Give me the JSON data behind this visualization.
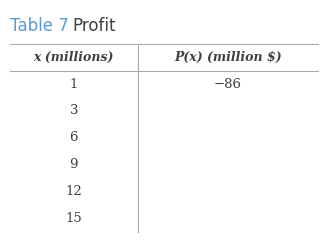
{
  "title_table": "Table 7",
  "title_profit": "Profit",
  "title_table_color": "#5b9bd5",
  "title_profit_color": "#404040",
  "col1_header": "x (millions)",
  "col2_header": "P(x) (million $)",
  "col1_values": [
    "1",
    "3",
    "6",
    "9",
    "12",
    "15"
  ],
  "col2_values": [
    "−86",
    "",
    "",
    "",
    "",
    ""
  ],
  "background_color": "#ffffff",
  "line_color": "#aaaaaa",
  "text_color": "#404040",
  "header_fontsize": 9,
  "data_fontsize": 9.5,
  "title_fontsize": 12
}
